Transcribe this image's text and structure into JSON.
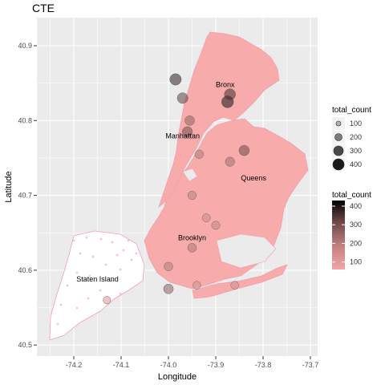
{
  "chart_data": {
    "type": "map-scatter",
    "title": "CTE",
    "xlabel": "Longitude",
    "ylabel": "Latitude",
    "xlim": [
      -74.27,
      -73.69
    ],
    "ylim": [
      40.49,
      40.92
    ],
    "x_ticks": [
      "-74.2",
      "-74.1",
      "-74.0",
      "-73.9",
      "-73.8",
      "-73.7"
    ],
    "x_tick_values": [
      -74.2,
      -74.1,
      -74.0,
      -73.9,
      -73.8,
      -73.7
    ],
    "y_ticks": [
      "40.5",
      "40.6",
      "40.7",
      "40.8",
      "40.9"
    ],
    "y_tick_values": [
      40.5,
      40.6,
      40.7,
      40.8,
      40.9
    ],
    "grid": true,
    "background": "#ebebeb",
    "labels": [
      {
        "text": "Bronx",
        "lon": -73.88,
        "lat": 40.845
      },
      {
        "text": "Manhattan",
        "lon": -73.97,
        "lat": 40.776
      },
      {
        "text": "Queens",
        "lon": -73.82,
        "lat": 40.72
      },
      {
        "text": "Brooklyn",
        "lon": -73.95,
        "lat": 40.64
      },
      {
        "text": "Staten Island",
        "lon": -74.15,
        "lat": 40.585
      }
    ],
    "size_legend": {
      "title": "total_count",
      "breaks": [
        100,
        200,
        300,
        400
      ]
    },
    "color_legend": {
      "title": "total_count",
      "breaks": [
        100,
        200,
        300,
        400
      ],
      "low": "#f4a6a6",
      "high": "#000000"
    },
    "highlights": [
      {
        "lon": -73.985,
        "lat": 40.855,
        "count": 350
      },
      {
        "lon": -73.97,
        "lat": 40.83,
        "count": 280
      },
      {
        "lon": -73.875,
        "lat": 40.825,
        "count": 380
      },
      {
        "lon": -73.87,
        "lat": 40.835,
        "count": 320
      },
      {
        "lon": -73.96,
        "lat": 40.785,
        "count": 250
      },
      {
        "lon": -73.955,
        "lat": 40.8,
        "count": 200
      },
      {
        "lon": -73.935,
        "lat": 40.755,
        "count": 150
      },
      {
        "lon": -73.87,
        "lat": 40.745,
        "count": 180
      },
      {
        "lon": -73.84,
        "lat": 40.76,
        "count": 260
      },
      {
        "lon": -73.95,
        "lat": 40.7,
        "count": 140
      },
      {
        "lon": -73.92,
        "lat": 40.67,
        "count": 120
      },
      {
        "lon": -73.9,
        "lat": 40.66,
        "count": 130
      },
      {
        "lon": -73.95,
        "lat": 40.63,
        "count": 160
      },
      {
        "lon": -74.0,
        "lat": 40.605,
        "count": 150
      },
      {
        "lon": -74.0,
        "lat": 40.575,
        "count": 210
      },
      {
        "lon": -73.94,
        "lat": 40.58,
        "count": 110
      },
      {
        "lon": -73.86,
        "lat": 40.58,
        "count": 110
      },
      {
        "lon": -74.13,
        "lat": 40.56,
        "count": 100
      }
    ]
  }
}
